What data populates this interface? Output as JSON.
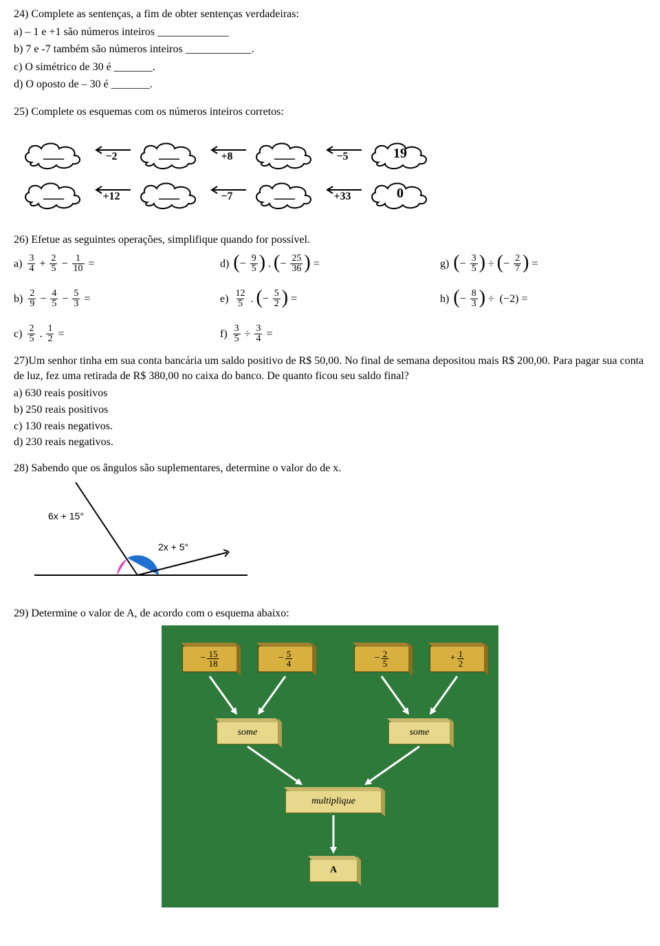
{
  "q24": {
    "stem": "24) Complete as sentenças, a fim de obter sentenças verdadeiras:",
    "a": "a) – 1 e +1 são números inteiros _____________",
    "b": "b) 7 e -7 também são números inteiros ____________.",
    "c": "c) O simétrico de 30 é _______.",
    "d": "d) O oposto de – 30 é _______."
  },
  "q25": {
    "stem": "25) Complete os esquemas com os números inteiros corretos:",
    "row1": {
      "clouds": [
        "___",
        "___",
        "___",
        "19"
      ],
      "arrows": [
        "−2",
        "+8",
        "−5"
      ]
    },
    "row2": {
      "clouds": [
        "___",
        "___",
        "___",
        "0"
      ],
      "arrows": [
        "+12",
        "−7",
        "+33"
      ]
    }
  },
  "q26": {
    "stem": "26) Efetue as seguintes operações, simplifique quando for possível.",
    "a": {
      "label": "a)",
      "frac1": {
        "n": "3",
        "d": "4"
      },
      "op1": "+",
      "frac2": {
        "n": "2",
        "d": "5"
      },
      "op2": "−",
      "frac3": {
        "n": "1",
        "d": "10"
      },
      "tail": "="
    },
    "b": {
      "label": "b)",
      "frac1": {
        "n": "2",
        "d": "9"
      },
      "op1": "−",
      "frac2": {
        "n": "4",
        "d": "5"
      },
      "op2": "−",
      "frac3": {
        "n": "5",
        "d": "3"
      },
      "tail": "="
    },
    "c": {
      "label": "c)",
      "frac1": {
        "n": "2",
        "d": "5"
      },
      "op1": ".",
      "frac2": {
        "n": "1",
        "d": "2"
      },
      "tail": "="
    },
    "d": {
      "label": "d)",
      "p1": {
        "n": "9",
        "d": "5",
        "neg": true
      },
      "mid": ".",
      "p2": {
        "n": "25",
        "d": "36",
        "neg": true
      },
      "tail": "="
    },
    "e": {
      "label": "e)",
      "lead": {
        "n": "12",
        "d": "5"
      },
      "mid": ".",
      "p2": {
        "n": "5",
        "d": "2",
        "neg": true
      },
      "tail": "="
    },
    "f": {
      "label": "f)",
      "frac1": {
        "n": "3",
        "d": "5"
      },
      "op1": "÷",
      "frac2": {
        "n": "3",
        "d": "4"
      },
      "tail": "="
    },
    "g": {
      "label": "g)",
      "p1": {
        "n": "3",
        "d": "5",
        "neg": true
      },
      "mid": "÷",
      "p2": {
        "n": "2",
        "d": "7",
        "neg": true
      },
      "tail": "="
    },
    "h": {
      "label": "h)",
      "p1": {
        "n": "8",
        "d": "3",
        "neg": true
      },
      "mid": "÷",
      "right_text": "(−2) ="
    }
  },
  "q27": {
    "text": "27)Um senhor tinha em sua conta bancária um saldo positivo de R$ 50,00. No final de semana depositou mais R$ 200,00. Para pagar sua conta de luz, fez uma retirada de R$ 380,00 no caixa do banco. De quanto ficou seu saldo final?",
    "choices": {
      "a": "a) 630 reais positivos",
      "b": "b) 250 reais positivos",
      "c": "c) 130 reais negativos.",
      "d": "d) 230 reais negativos."
    }
  },
  "q28": {
    "stem": "28) Sabendo que  os ângulos são suplementares, determine o valor do de x.",
    "angle": {
      "a": "6x + 15°",
      "b": "2x + 5°"
    }
  },
  "q29": {
    "stem": "29) Determine o valor de A, de acordo com o esquema abaixo:",
    "inputs": {
      "v1": {
        "sign": "−",
        "n": "15",
        "d": "18"
      },
      "v2": {
        "sign": "−",
        "n": "5",
        "d": "4"
      },
      "v3": {
        "sign": "−",
        "n": "2",
        "d": "5"
      },
      "v4": {
        "sign": "+",
        "n": "1",
        "d": "2"
      }
    },
    "ops": {
      "some": "some",
      "multiplique": "multiplique"
    },
    "result": "A",
    "colors": {
      "board": "#2e7a3a",
      "val_block": "#d8b040",
      "op_block": "#e8d88c",
      "arrow": "#ffffff"
    }
  }
}
